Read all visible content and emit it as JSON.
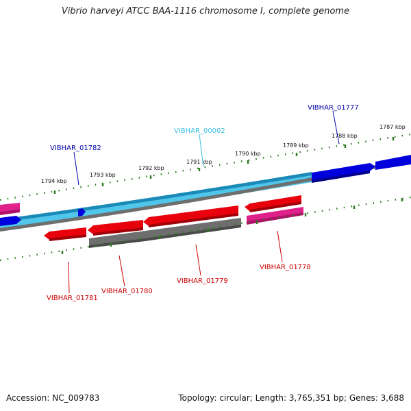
{
  "title": "Vibrio harveyi ATCC BAA-1116 chromosome I, complete genome",
  "footer": {
    "accession": "Accession: NC_009783",
    "topology": "Topology: circular; Length: 3,765,351 bp; Genes: 3,688"
  },
  "colors": {
    "tick": "#2a7a1e",
    "backbone_light": "#4fc6ea",
    "backbone_dark": "#1a8ab8",
    "forward_cds": "#0000dd",
    "reverse_cds": "#e8000c",
    "pseudo": "#e0218a",
    "gray": "#6e6e6e",
    "label_red": "#cc0000",
    "label_blue": "#0000aa",
    "label_cyan": "#3cc0e0"
  },
  "scale": {
    "ticks": [
      "1794 kbp",
      "1793 kbp",
      "1792 kbp",
      "1791 kbp",
      "1790 kbp",
      "1789 kbp",
      "1788 kbp",
      "1787 kbp"
    ]
  },
  "genes": {
    "vibhar_01777": "VIBHAR_01777",
    "vibhar_00002": "VIBHAR_00002",
    "vibhar_01782": "VIBHAR_01782",
    "vibhar_01781": "VIBHAR_01781",
    "vibhar_01780": "VIBHAR_01780",
    "vibhar_01779": "VIBHAR_01779",
    "vibhar_01778": "VIBHAR_01778"
  }
}
